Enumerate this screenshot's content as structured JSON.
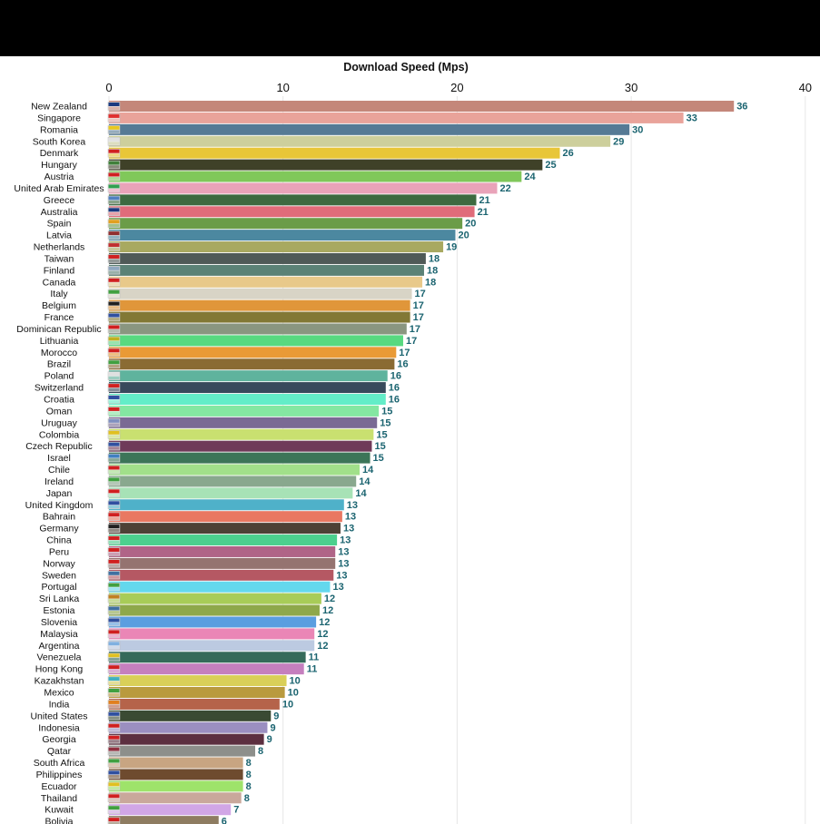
{
  "chart_data": {
    "type": "bar",
    "orientation": "horizontal",
    "title": "Download Speed (Mps)",
    "xlabel": "Download Speed (Mps)",
    "ylabel": "",
    "xlim": [
      0,
      40
    ],
    "xticks": [
      "0",
      "10",
      "20",
      "30",
      "40"
    ],
    "grid": true,
    "categories": [
      "New Zealand",
      "Singapore",
      "Romania",
      "South Korea",
      "Denmark",
      "Hungary",
      "Austria",
      "United Arab Emirates",
      "Greece",
      "Australia",
      "Spain",
      "Latvia",
      "Netherlands",
      "Taiwan",
      "Finland",
      "Canada",
      "Italy",
      "Belgium",
      "France",
      "Dominican Republic",
      "Lithuania",
      "Morocco",
      "Brazil",
      "Poland",
      "Switzerland",
      "Croatia",
      "Oman",
      "Uruguay",
      "Colombia",
      "Czech Republic",
      "Israel",
      "Chile",
      "Ireland",
      "Japan",
      "United Kingdom",
      "Bahrain",
      "Germany",
      "China",
      "Peru",
      "Norway",
      "Sweden",
      "Portugal",
      "Sri Lanka",
      "Estonia",
      "Slovenia",
      "Malaysia",
      "Argentina",
      "Venezuela",
      "Hong Kong",
      "Kazakhstan",
      "Mexico",
      "India",
      "United States",
      "Indonesia",
      "Georgia",
      "Qatar",
      "South Africa",
      "Philippines",
      "Ecuador",
      "Thailand",
      "Kuwait",
      "Bolivia"
    ],
    "values": [
      35.9,
      33.0,
      29.9,
      28.8,
      25.9,
      24.9,
      23.7,
      22.3,
      21.1,
      21.0,
      20.3,
      19.9,
      19.2,
      18.2,
      18.1,
      18.0,
      17.4,
      17.3,
      17.3,
      17.1,
      16.9,
      16.5,
      16.4,
      16.0,
      15.9,
      15.9,
      15.5,
      15.4,
      15.2,
      15.1,
      15.0,
      14.4,
      14.2,
      14.0,
      13.5,
      13.4,
      13.3,
      13.1,
      13.0,
      13.0,
      12.9,
      12.7,
      12.2,
      12.1,
      11.9,
      11.8,
      11.8,
      11.3,
      11.2,
      10.2,
      10.1,
      9.8,
      9.3,
      9.1,
      8.9,
      8.4,
      7.7,
      7.7,
      7.7,
      7.6,
      7.0,
      6.3
    ],
    "labels": [
      "36",
      "33",
      "30",
      "29",
      "26",
      "25",
      "24",
      "22",
      "21",
      "21",
      "20",
      "20",
      "19",
      "18",
      "18",
      "18",
      "17",
      "17",
      "17",
      "17",
      "17",
      "17",
      "16",
      "16",
      "16",
      "16",
      "15",
      "15",
      "15",
      "15",
      "15",
      "14",
      "14",
      "14",
      "13",
      "13",
      "13",
      "13",
      "13",
      "13",
      "13",
      "13",
      "12",
      "12",
      "12",
      "12",
      "12",
      "11",
      "11",
      "10",
      "10",
      "10",
      "9",
      "9",
      "9",
      "8",
      "8",
      "8",
      "8",
      "8",
      "7",
      "6"
    ],
    "colors": [
      "#c4877a",
      "#e9a39a",
      "#567a95",
      "#cdcf9c",
      "#e8c638",
      "#3f4128",
      "#80c85a",
      "#e9a3b9",
      "#3d6a40",
      "#e06c7a",
      "#6b9c48",
      "#4c88a0",
      "#a8a960",
      "#4f5a57",
      "#5b8276",
      "#e8c98a",
      "#d8d4c6",
      "#e0963a",
      "#827835",
      "#8a9680",
      "#58d980",
      "#e99a36",
      "#8a6b33",
      "#5fb39d",
      "#384a5c",
      "#63edc8",
      "#84e7a2",
      "#7a6a94",
      "#c9e070",
      "#6f3a59",
      "#3c7558",
      "#a1e08a",
      "#89a88e",
      "#a7e2b6",
      "#4fb1c9",
      "#e97862",
      "#4e4136",
      "#4cd08e",
      "#b06487",
      "#957370",
      "#b55863",
      "#64d8ed",
      "#a8cc58",
      "#8ea84b",
      "#5a9ee0",
      "#ea86b6",
      "#bccae1",
      "#356a5a",
      "#c57fbe",
      "#d9cf58",
      "#b99a3e",
      "#b5634a",
      "#3a4a33",
      "#9b8fc0",
      "#5c2f40",
      "#8d8f8b",
      "#c8a582",
      "#6e4b2f",
      "#9ee36a",
      "#c9a89b",
      "#d1a6e6",
      "#8e7c61"
    ],
    "flag_colors": [
      "#1a3a80",
      "#e03030",
      "#e8c820",
      "#e0e0e0",
      "#d02020",
      "#40803a",
      "#d02020",
      "#30a050",
      "#5080c0",
      "#1a3a80",
      "#e0a020",
      "#903030",
      "#c03030",
      "#d02020",
      "#90a8c0",
      "#d02020",
      "#40a040",
      "#202020",
      "#3050a0",
      "#d02020",
      "#c0b020",
      "#d02020",
      "#40a040",
      "#e0e0e0",
      "#d02020",
      "#3050a0",
      "#d02020",
      "#8090c0",
      "#e0c020",
      "#3050a0",
      "#4080c0",
      "#d02020",
      "#40a040",
      "#d02020",
      "#3050a0",
      "#d02020",
      "#202020",
      "#d02020",
      "#d02020",
      "#d02020",
      "#4070a0",
      "#40a040",
      "#c08020",
      "#4070a0",
      "#3050a0",
      "#d02020",
      "#80b0e0",
      "#e0c020",
      "#d02020",
      "#40b0c0",
      "#40a040",
      "#e08020",
      "#3050a0",
      "#d02020",
      "#d02020",
      "#903040",
      "#40a040",
      "#3050a0",
      "#e0c020",
      "#d02020",
      "#40a040",
      "#d02020"
    ]
  }
}
